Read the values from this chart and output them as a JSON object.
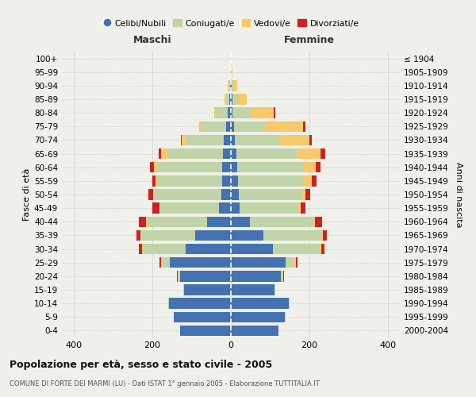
{
  "age_groups": [
    "0-4",
    "5-9",
    "10-14",
    "15-19",
    "20-24",
    "25-29",
    "30-34",
    "35-39",
    "40-44",
    "45-49",
    "50-54",
    "55-59",
    "60-64",
    "65-69",
    "70-74",
    "75-79",
    "80-84",
    "85-89",
    "90-94",
    "95-99",
    "100+"
  ],
  "birth_years": [
    "2000-2004",
    "1995-1999",
    "1990-1994",
    "1985-1989",
    "1980-1984",
    "1975-1979",
    "1970-1974",
    "1965-1969",
    "1960-1964",
    "1955-1959",
    "1950-1954",
    "1945-1949",
    "1940-1944",
    "1935-1939",
    "1930-1934",
    "1925-1929",
    "1920-1924",
    "1915-1919",
    "1910-1914",
    "1905-1909",
    "≤ 1904"
  ],
  "maschi": {
    "celibi": [
      130,
      145,
      158,
      120,
      130,
      155,
      115,
      90,
      60,
      30,
      25,
      23,
      22,
      20,
      18,
      12,
      8,
      4,
      2,
      1,
      0
    ],
    "coniugati": [
      0,
      1,
      2,
      2,
      4,
      22,
      110,
      140,
      155,
      150,
      170,
      165,
      165,
      140,
      95,
      60,
      30,
      10,
      4,
      1,
      0
    ],
    "vedovi": [
      0,
      0,
      0,
      0,
      1,
      1,
      1,
      1,
      2,
      2,
      2,
      4,
      8,
      18,
      12,
      8,
      5,
      3,
      2,
      0,
      0
    ],
    "divorziati": [
      0,
      0,
      0,
      0,
      2,
      4,
      8,
      10,
      18,
      18,
      12,
      8,
      10,
      5,
      3,
      0,
      0,
      0,
      0,
      0,
      0
    ]
  },
  "femmine": {
    "nubili": [
      122,
      138,
      148,
      112,
      128,
      140,
      108,
      82,
      48,
      22,
      20,
      18,
      16,
      14,
      10,
      8,
      5,
      4,
      2,
      1,
      0
    ],
    "coniugate": [
      0,
      1,
      2,
      2,
      4,
      22,
      118,
      148,
      162,
      150,
      162,
      168,
      170,
      155,
      115,
      80,
      45,
      15,
      6,
      2,
      0
    ],
    "vedove": [
      0,
      0,
      0,
      0,
      2,
      4,
      4,
      4,
      4,
      6,
      8,
      20,
      30,
      60,
      75,
      95,
      60,
      22,
      8,
      2,
      0
    ],
    "divorziate": [
      0,
      0,
      0,
      0,
      2,
      4,
      8,
      10,
      18,
      12,
      12,
      12,
      12,
      12,
      6,
      6,
      4,
      0,
      0,
      0,
      0
    ]
  },
  "colors": {
    "celibi": "#4472b0",
    "coniugati": "#c0d4a8",
    "vedovi": "#f8c96a",
    "divorziati": "#cc2222"
  },
  "xlim": 430,
  "title_main": "Popolazione per età, sesso e stato civile - 2005",
  "title_sub": "COMUNE DI FORTE DEI MARMI (LU) - Dati ISTAT 1° gennaio 2005 - Elaborazione TUTTITALIA.IT",
  "xlabel_left": "Maschi",
  "xlabel_right": "Femmine",
  "ylabel_left": "Fasce di età",
  "ylabel_right": "Anni di nascita",
  "legend_labels": [
    "Celibi/Nubili",
    "Coniugati/e",
    "Vedovi/e",
    "Divorziati/e"
  ],
  "background_color": "#f0f0ea",
  "grid_color": "#d0d0d0"
}
